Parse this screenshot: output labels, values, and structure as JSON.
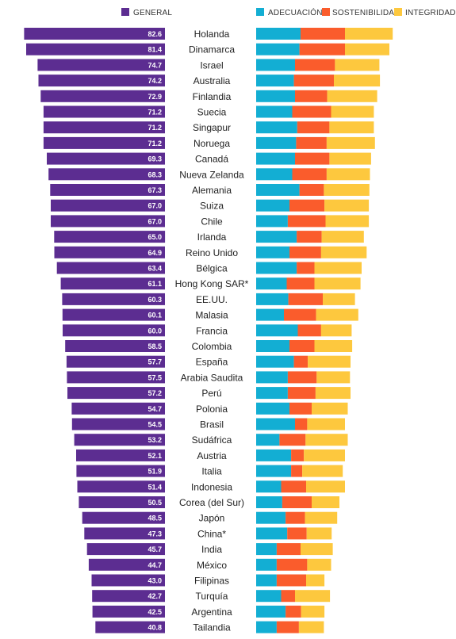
{
  "chart_data": {
    "type": "bar",
    "legend": {
      "general": "GENERAL",
      "adequacy": "ADECUACIÓN",
      "sustainability": "SOSTENIBILIDAD",
      "integrity": "INTEGRIDAD"
    },
    "colors": {
      "general": "#5c2d91",
      "adequacy": "#13aed3",
      "sustainability": "#fa5c2c",
      "integrity": "#fdc83e"
    },
    "categories": [
      "Holanda",
      "Dinamarca",
      "Israel",
      "Australia",
      "Finlandia",
      "Suecia",
      "Singapur",
      "Noruega",
      "Canadá",
      "Nueva Zelanda",
      "Alemania",
      "Suiza",
      "Chile",
      "Irlanda",
      "Reino Unido",
      "Bélgica",
      "Hong Kong SAR*",
      "EE.UU.",
      "Malasia",
      "Francia",
      "Colombia",
      "España",
      "Arabia Saudita",
      "Perú",
      "Polonia",
      "Brasil",
      "Sudáfrica",
      "Austria",
      "Italia",
      "Indonesia",
      "Corea (del Sur)",
      "Japón",
      "China*",
      "India",
      "México",
      "Filipinas",
      "Turquía",
      "Argentina",
      "Tailandia"
    ],
    "series": [
      {
        "name": "GENERAL",
        "values": [
          82.6,
          81.4,
          74.7,
          74.2,
          72.9,
          71.2,
          71.2,
          71.2,
          69.3,
          68.3,
          67.3,
          67.0,
          67.0,
          65.0,
          64.9,
          63.4,
          61.1,
          60.3,
          60.1,
          60.0,
          58.5,
          57.7,
          57.5,
          57.2,
          54.7,
          54.5,
          53.2,
          52.1,
          51.9,
          51.4,
          50.5,
          48.5,
          47.3,
          45.7,
          44.7,
          43.0,
          42.7,
          42.5,
          40.8
        ]
      },
      {
        "name": "ADECUACIÓN",
        "values": [
          80,
          78,
          70,
          68,
          70,
          65,
          74,
          72,
          70,
          65,
          78,
          60,
          57,
          73,
          60,
          73,
          55,
          58,
          50,
          75,
          60,
          68,
          57,
          57,
          60,
          70,
          42,
          63,
          63,
          45,
          47,
          53,
          56,
          37,
          37,
          37,
          45,
          53,
          37
        ]
      },
      {
        "name": "SOSTENIBILIDAD",
        "values": [
          80,
          82,
          72,
          72,
          58,
          70,
          58,
          55,
          62,
          62,
          44,
          63,
          68,
          45,
          57,
          32,
          50,
          62,
          58,
          42,
          45,
          25,
          52,
          50,
          40,
          22,
          47,
          23,
          20,
          45,
          53,
          35,
          35,
          43,
          55,
          53,
          25,
          28,
          40
        ]
      },
      {
        "name": "INTEGRIDAD",
        "values": [
          86,
          80,
          80,
          83,
          90,
          77,
          80,
          87,
          75,
          78,
          82,
          80,
          78,
          76,
          82,
          85,
          83,
          58,
          76,
          55,
          68,
          77,
          60,
          63,
          65,
          68,
          76,
          74,
          73,
          70,
          50,
          58,
          45,
          58,
          43,
          33,
          63,
          42,
          45
        ]
      }
    ]
  }
}
